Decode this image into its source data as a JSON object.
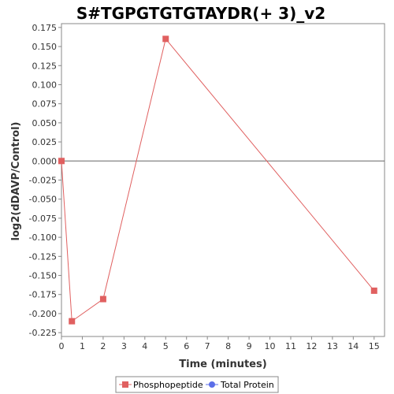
{
  "chart_data": {
    "type": "line",
    "title": "S#TGPGTGTGTAYDR(+ 3)_v2",
    "xlabel": "Time (minutes)",
    "ylabel": "log2(dDAVP/Control)",
    "xlim": [
      0,
      15.5
    ],
    "ylim": [
      -0.23,
      0.18
    ],
    "xticks": [
      0,
      1,
      2,
      3,
      4,
      5,
      6,
      7,
      8,
      9,
      10,
      11,
      12,
      13,
      14,
      15
    ],
    "yticks": [
      0.175,
      0.15,
      0.125,
      0.1,
      0.075,
      0.05,
      0.025,
      0.0,
      -0.025,
      -0.05,
      -0.075,
      -0.1,
      -0.125,
      -0.15,
      -0.175,
      -0.2,
      -0.225
    ],
    "ytick_labels": [
      "0.175",
      "0.150",
      "0.125",
      "0.100",
      "0.075",
      "0.050",
      "0.025",
      "0.000",
      "-0.025",
      "-0.050",
      "-0.075",
      "-0.100",
      "-0.125",
      "-0.150",
      "-0.175",
      "-0.200",
      "-0.225"
    ],
    "grid": false,
    "zero_line": true,
    "legend_position": "bottom",
    "series": [
      {
        "name": "Phosphopeptide",
        "color": "#e06060",
        "marker": "square",
        "x": [
          0,
          0.5,
          2,
          5,
          15
        ],
        "y": [
          0.0,
          -0.21,
          -0.181,
          0.16,
          -0.17
        ]
      },
      {
        "name": "Total Protein",
        "color": "#5b6ee8",
        "marker": "circle",
        "x": [],
        "y": []
      }
    ]
  }
}
